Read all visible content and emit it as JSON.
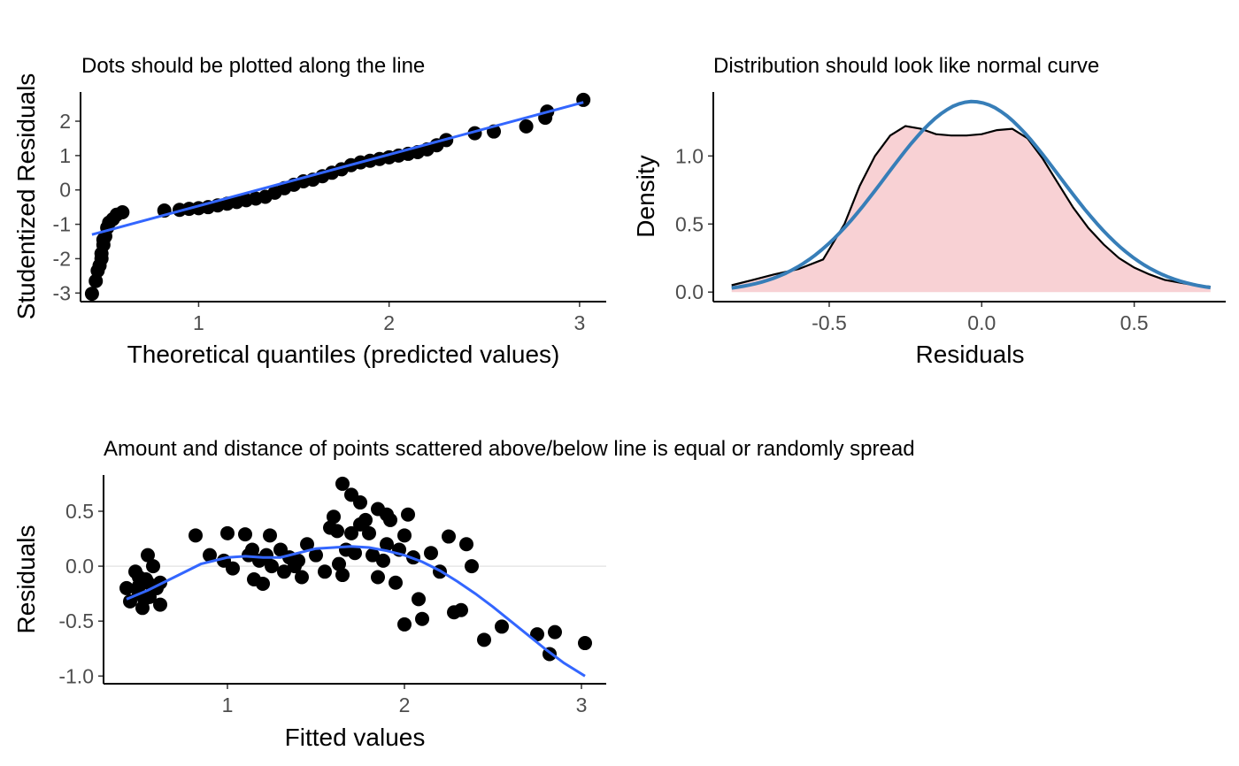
{
  "colors": {
    "points": "#000000",
    "fit_line": "#3366FF",
    "normal_curve": "#377EB8",
    "density_fill": "#F8D1D4",
    "zero_line": "#E6E6E6"
  },
  "chart_data": [
    {
      "id": "qq",
      "type": "scatter",
      "title": "Dots should be plotted along the line",
      "xlabel": "Theoretical quantiles (predicted values)",
      "ylabel": "Studentized Residuals",
      "xlim": [
        0.38,
        3.14
      ],
      "ylim": [
        -3.25,
        2.85
      ],
      "xticks": [
        1,
        2,
        3
      ],
      "xtick_labels": [
        "1",
        "2",
        "3"
      ],
      "yticks": [
        -3,
        -2,
        -1,
        0,
        1,
        2
      ],
      "ytick_labels": [
        "-3",
        "-2",
        "-1",
        "0",
        "1",
        "2"
      ],
      "points": [
        [
          0.44,
          -3.02
        ],
        [
          0.46,
          -2.65
        ],
        [
          0.47,
          -2.35
        ],
        [
          0.48,
          -2.2
        ],
        [
          0.49,
          -2.0
        ],
        [
          0.49,
          -1.85
        ],
        [
          0.5,
          -1.6
        ],
        [
          0.5,
          -1.45
        ],
        [
          0.51,
          -1.35
        ],
        [
          0.52,
          -1.1
        ],
        [
          0.53,
          -0.95
        ],
        [
          0.55,
          -0.85
        ],
        [
          0.57,
          -0.72
        ],
        [
          0.6,
          -0.65
        ],
        [
          0.82,
          -0.6
        ],
        [
          0.9,
          -0.58
        ],
        [
          0.95,
          -0.55
        ],
        [
          1.0,
          -0.53
        ],
        [
          1.05,
          -0.5
        ],
        [
          1.1,
          -0.45
        ],
        [
          1.15,
          -0.4
        ],
        [
          1.2,
          -0.35
        ],
        [
          1.25,
          -0.3
        ],
        [
          1.3,
          -0.25
        ],
        [
          1.35,
          -0.2
        ],
        [
          1.4,
          -0.08
        ],
        [
          1.45,
          0.05
        ],
        [
          1.5,
          0.15
        ],
        [
          1.55,
          0.25
        ],
        [
          1.6,
          0.3
        ],
        [
          1.65,
          0.4
        ],
        [
          1.7,
          0.5
        ],
        [
          1.75,
          0.6
        ],
        [
          1.8,
          0.72
        ],
        [
          1.85,
          0.8
        ],
        [
          1.9,
          0.85
        ],
        [
          1.95,
          0.9
        ],
        [
          2.0,
          0.95
        ],
        [
          2.05,
          1.0
        ],
        [
          2.1,
          1.05
        ],
        [
          2.15,
          1.1
        ],
        [
          2.2,
          1.18
        ],
        [
          2.25,
          1.3
        ],
        [
          2.3,
          1.45
        ],
        [
          2.45,
          1.65
        ],
        [
          2.55,
          1.7
        ],
        [
          2.72,
          1.85
        ],
        [
          2.82,
          2.1
        ],
        [
          2.83,
          2.28
        ],
        [
          3.02,
          2.62
        ]
      ],
      "fit_line": [
        [
          0.44,
          -1.3
        ],
        [
          3.02,
          2.55
        ]
      ]
    },
    {
      "id": "density",
      "type": "area",
      "title": "Distribution should look like normal curve",
      "xlabel": "Residuals",
      "ylabel": "Density",
      "xlim": [
        -0.88,
        0.8
      ],
      "ylim": [
        -0.07,
        1.47
      ],
      "xticks": [
        -0.5,
        0.0,
        0.5
      ],
      "xtick_labels": [
        "-0.5",
        "0.0",
        "0.5"
      ],
      "yticks": [
        0.0,
        0.5,
        1.0
      ],
      "ytick_labels": [
        "0.0",
        "0.5",
        "1.0"
      ],
      "density": [
        [
          -0.82,
          0.05
        ],
        [
          -0.75,
          0.09
        ],
        [
          -0.68,
          0.13
        ],
        [
          -0.6,
          0.17
        ],
        [
          -0.52,
          0.24
        ],
        [
          -0.45,
          0.5
        ],
        [
          -0.4,
          0.78
        ],
        [
          -0.35,
          1.0
        ],
        [
          -0.3,
          1.15
        ],
        [
          -0.25,
          1.22
        ],
        [
          -0.2,
          1.2
        ],
        [
          -0.15,
          1.16
        ],
        [
          -0.1,
          1.15
        ],
        [
          -0.05,
          1.15
        ],
        [
          0.0,
          1.16
        ],
        [
          0.05,
          1.19
        ],
        [
          0.1,
          1.2
        ],
        [
          0.15,
          1.13
        ],
        [
          0.2,
          0.98
        ],
        [
          0.25,
          0.8
        ],
        [
          0.3,
          0.62
        ],
        [
          0.35,
          0.47
        ],
        [
          0.4,
          0.35
        ],
        [
          0.45,
          0.25
        ],
        [
          0.5,
          0.18
        ],
        [
          0.55,
          0.13
        ],
        [
          0.6,
          0.09
        ],
        [
          0.65,
          0.07
        ],
        [
          0.7,
          0.05
        ],
        [
          0.75,
          0.04
        ]
      ],
      "normal_mean": -0.03,
      "normal_sd": 0.285,
      "normal_range": [
        -0.82,
        0.75
      ]
    },
    {
      "id": "resid",
      "type": "scatter",
      "title": "Amount and distance of points scattered above/below line is equal or randomly spread",
      "xlabel": "Fitted values",
      "ylabel": "Residuals",
      "xlim": [
        0.3,
        3.14
      ],
      "ylim": [
        -1.07,
        0.83
      ],
      "xticks": [
        1,
        2,
        3
      ],
      "xtick_labels": [
        "1",
        "2",
        "3"
      ],
      "yticks": [
        -1.0,
        -0.5,
        0.0,
        0.5
      ],
      "ytick_labels": [
        "-1.0",
        "-0.5",
        "0.0",
        "0.5"
      ],
      "points": [
        [
          0.43,
          -0.2
        ],
        [
          0.45,
          -0.32
        ],
        [
          0.48,
          -0.05
        ],
        [
          0.5,
          -0.25
        ],
        [
          0.5,
          -0.1
        ],
        [
          0.52,
          -0.38
        ],
        [
          0.53,
          -0.3
        ],
        [
          0.55,
          0.1
        ],
        [
          0.55,
          -0.15
        ],
        [
          0.56,
          -0.28
        ],
        [
          0.58,
          0.0
        ],
        [
          0.6,
          -0.2
        ],
        [
          0.62,
          -0.15
        ],
        [
          0.62,
          -0.35
        ],
        [
          0.5,
          -0.18
        ],
        [
          0.54,
          -0.12
        ],
        [
          0.82,
          0.28
        ],
        [
          0.9,
          0.1
        ],
        [
          0.98,
          0.05
        ],
        [
          1.0,
          0.3
        ],
        [
          1.03,
          -0.02
        ],
        [
          1.1,
          0.29
        ],
        [
          1.12,
          0.1
        ],
        [
          1.14,
          0.15
        ],
        [
          1.15,
          -0.12
        ],
        [
          1.18,
          0.05
        ],
        [
          1.2,
          -0.16
        ],
        [
          1.22,
          0.1
        ],
        [
          1.24,
          0.28
        ],
        [
          1.25,
          0.0
        ],
        [
          1.3,
          0.15
        ],
        [
          1.32,
          -0.05
        ],
        [
          1.35,
          0.08
        ],
        [
          1.38,
          0.0
        ],
        [
          1.4,
          0.05
        ],
        [
          1.42,
          -0.1
        ],
        [
          1.45,
          0.2
        ],
        [
          1.5,
          0.1
        ],
        [
          1.55,
          -0.05
        ],
        [
          1.58,
          0.35
        ],
        [
          1.6,
          0.45
        ],
        [
          1.62,
          0.32
        ],
        [
          1.63,
          0.02
        ],
        [
          1.65,
          -0.08
        ],
        [
          1.67,
          0.15
        ],
        [
          1.7,
          0.3
        ],
        [
          1.72,
          0.12
        ],
        [
          1.75,
          0.38
        ],
        [
          1.78,
          0.42
        ],
        [
          1.8,
          0.3
        ],
        [
          1.82,
          0.1
        ],
        [
          1.85,
          -0.1
        ],
        [
          1.88,
          0.05
        ],
        [
          1.9,
          0.2
        ],
        [
          1.92,
          0.42
        ],
        [
          1.95,
          -0.15
        ],
        [
          1.97,
          0.15
        ],
        [
          2.0,
          0.28
        ],
        [
          2.02,
          0.47
        ],
        [
          2.05,
          0.08
        ],
        [
          2.08,
          -0.3
        ],
        [
          2.1,
          -0.48
        ],
        [
          2.15,
          0.12
        ],
        [
          2.2,
          -0.05
        ],
        [
          2.25,
          0.27
        ],
        [
          2.28,
          -0.42
        ],
        [
          2.32,
          -0.4
        ],
        [
          2.35,
          0.2
        ],
        [
          2.38,
          0.0
        ],
        [
          1.65,
          0.75
        ],
        [
          1.7,
          0.65
        ],
        [
          1.75,
          0.58
        ],
        [
          1.85,
          0.52
        ],
        [
          1.9,
          0.47
        ],
        [
          2.0,
          -0.53
        ],
        [
          2.45,
          -0.67
        ],
        [
          2.55,
          -0.55
        ],
        [
          2.75,
          -0.62
        ],
        [
          2.82,
          -0.8
        ],
        [
          2.85,
          -0.6
        ],
        [
          3.02,
          -0.7
        ]
      ],
      "smooth": [
        [
          0.43,
          -0.3
        ],
        [
          0.55,
          -0.22
        ],
        [
          0.7,
          -0.1
        ],
        [
          0.85,
          0.02
        ],
        [
          1.0,
          0.08
        ],
        [
          1.1,
          0.09
        ],
        [
          1.2,
          0.08
        ],
        [
          1.3,
          0.08
        ],
        [
          1.4,
          0.12
        ],
        [
          1.5,
          0.16
        ],
        [
          1.6,
          0.17
        ],
        [
          1.7,
          0.18
        ],
        [
          1.8,
          0.17
        ],
        [
          1.9,
          0.14
        ],
        [
          2.0,
          0.1
        ],
        [
          2.1,
          0.04
        ],
        [
          2.2,
          -0.04
        ],
        [
          2.3,
          -0.14
        ],
        [
          2.4,
          -0.25
        ],
        [
          2.5,
          -0.37
        ],
        [
          2.6,
          -0.5
        ],
        [
          2.7,
          -0.63
        ],
        [
          2.8,
          -0.76
        ],
        [
          2.9,
          -0.88
        ],
        [
          3.02,
          -1.0
        ]
      ]
    }
  ]
}
